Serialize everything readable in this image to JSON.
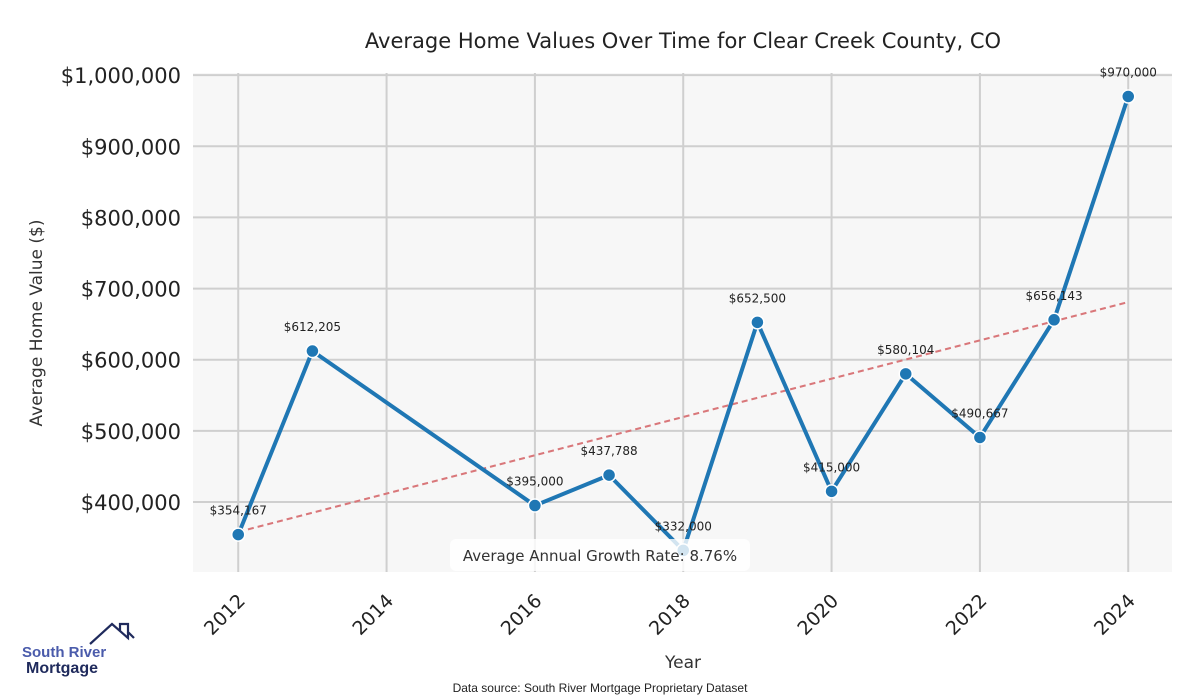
{
  "chart_data": {
    "type": "line",
    "title": "Average Home Values Over Time for Clear Creek County, CO",
    "xlabel": "Year",
    "ylabel": "Average Home Value ($)",
    "x": [
      2012,
      2013,
      2016,
      2017,
      2018,
      2019,
      2020,
      2021,
      2022,
      2023,
      2024
    ],
    "series": [
      {
        "name": "Average Home Value",
        "values": [
          354167,
          612205,
          395000,
          437788,
          332000,
          652500,
          415000,
          580104,
          490667,
          656143,
          970000
        ],
        "color": "#1f77b4"
      }
    ],
    "data_labels": [
      "$354,167",
      "$612,205",
      "$395,000",
      "$437,788",
      "$332,000",
      "$652,500",
      "$415,000",
      "$580,104",
      "$490,667",
      "$656,143",
      "$970,000"
    ],
    "trendline": {
      "x": [
        2012,
        2024
      ],
      "y": [
        358000,
        681000
      ],
      "color": "#d9777a",
      "style": "dashed"
    },
    "xticks": [
      2012,
      2014,
      2016,
      2018,
      2020,
      2022,
      2024
    ],
    "xtick_labels": [
      "2012",
      "2014",
      "2016",
      "2018",
      "2020",
      "2022",
      "2024"
    ],
    "yticks": [
      400000,
      500000,
      600000,
      700000,
      800000,
      900000,
      1000000
    ],
    "ytick_labels": [
      "$400,000",
      "$500,000",
      "$600,000",
      "$700,000",
      "$800,000",
      "$900,000",
      "$1,000,000"
    ],
    "xlim": [
      2011.39,
      2024.59
    ],
    "ylim": [
      301600,
      1003000
    ],
    "grid": true,
    "annotation": "Average Annual Growth Rate: 8.76%"
  },
  "logo": {
    "line1": "South River",
    "line2": "Mortgage"
  },
  "source": "Data source: South River Mortgage Proprietary Dataset"
}
